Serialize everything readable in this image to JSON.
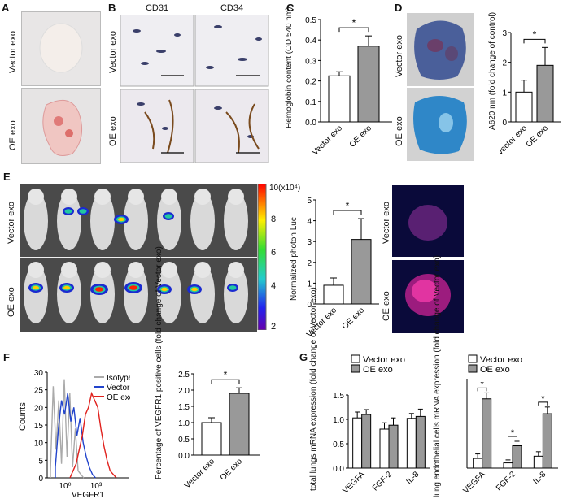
{
  "panels": {
    "A": {
      "letter": "A",
      "rows": [
        "Vector exo",
        "OE exo"
      ]
    },
    "B": {
      "letter": "B",
      "cols": [
        "CD31",
        "CD34"
      ],
      "rows": [
        "Vector exo",
        "OE exo"
      ]
    },
    "C": {
      "letter": "C",
      "sig": "*"
    },
    "D": {
      "letter": "D",
      "rows": [
        "Vector exo",
        "OE exo"
      ],
      "sig": "*"
    },
    "E": {
      "letter": "E",
      "rows": [
        "Vector exo",
        "OE exo"
      ],
      "scale_title": "10(x10⁴)",
      "scale_ticks": [
        "8",
        "6",
        "4",
        "2"
      ],
      "sig": "*"
    },
    "F": {
      "letter": "F",
      "legend": [
        "Isotype",
        "Vector exo",
        "OE exo"
      ],
      "xlabel": "VEGFR1",
      "ylabel": "Counts",
      "sig": "*"
    },
    "G": {
      "letter": "G",
      "legend": [
        "Vector exo",
        "OE exo"
      ],
      "sig": "*"
    }
  },
  "chart_data": [
    {
      "id": "C",
      "type": "bar",
      "categories": [
        "Vector exo",
        "OE exo"
      ],
      "values": [
        0.225,
        0.37
      ],
      "errors": [
        0.02,
        0.05
      ],
      "ylabel": "Hemoglobin content (OD 540 nm)",
      "ylim": [
        0,
        0.5
      ],
      "yticks": [
        "0.0",
        "0.1",
        "0.2",
        "0.3",
        "0.4",
        "0.5"
      ]
    },
    {
      "id": "D",
      "type": "bar",
      "categories": [
        "Vector exo",
        "OE exo"
      ],
      "values": [
        1.0,
        1.9
      ],
      "errors": [
        0.4,
        0.6
      ],
      "ylabel": "A620 nm (fold change of control)",
      "ylim": [
        0,
        3
      ],
      "yticks": [
        "0",
        "1",
        "2",
        "3"
      ]
    },
    {
      "id": "E",
      "type": "bar",
      "categories": [
        "Vector exo",
        "OE exo"
      ],
      "values": [
        0.9,
        3.1
      ],
      "errors": [
        0.35,
        1.0
      ],
      "ylabel": "Normalized photon Luc",
      "ylim": [
        0,
        5
      ],
      "yticks": [
        "0",
        "1",
        "2",
        "3",
        "4",
        "5"
      ]
    },
    {
      "id": "F-hist",
      "type": "histogram",
      "xlabel": "VEGFR1",
      "ylabel": "Counts",
      "ylim": [
        0,
        30
      ],
      "yticks": [
        "0",
        "5",
        "10",
        "15",
        "20",
        "25",
        "30"
      ],
      "xticks": [
        "10⁰",
        "10³"
      ],
      "series": [
        {
          "name": "Isotype",
          "color": "#aaaaaa"
        },
        {
          "name": "Vector exo",
          "color": "#2244cc"
        },
        {
          "name": "OE exo",
          "color": "#e0201c"
        }
      ]
    },
    {
      "id": "F-bar",
      "type": "bar",
      "categories": [
        "Vector exo",
        "OE exo"
      ],
      "values": [
        1.0,
        1.9
      ],
      "errors": [
        0.15,
        0.17
      ],
      "ylabel": "Percentage of VEGFR1 positive cells (fold change of Vector exo)",
      "ylim": [
        0,
        2.5
      ],
      "yticks": [
        "0.0",
        "0.5",
        "1.0",
        "1.5",
        "2.0",
        "2.5"
      ]
    },
    {
      "id": "G-left",
      "type": "bar",
      "categories": [
        "VEGFA",
        "FGF-2",
        "IL-8"
      ],
      "series": [
        {
          "name": "Vector exo",
          "values": [
            1.03,
            0.8,
            1.02
          ],
          "errors": [
            0.12,
            0.13,
            0.1
          ]
        },
        {
          "name": "OE exo",
          "values": [
            1.1,
            0.88,
            1.06
          ],
          "errors": [
            0.1,
            0.15,
            0.15
          ]
        }
      ],
      "ylabel": "total lungs mRNA expression (fold change of Vector exo)",
      "ylim": [
        0,
        1.5
      ],
      "yticks": [
        "0.0",
        "0.5",
        "1.0",
        "1.5"
      ]
    },
    {
      "id": "G-right",
      "type": "bar",
      "categories": [
        "VEGFA",
        "FGF-2",
        "IL-8"
      ],
      "series": [
        {
          "name": "Vector exo",
          "values": [
            1.3,
            0.7,
            1.6
          ],
          "errors": [
            0.6,
            0.4,
            0.6
          ]
        },
        {
          "name": "OE exo",
          "values": [
            9.3,
            3.0,
            7.3
          ],
          "errors": [
            0.8,
            0.6,
            0.9
          ]
        }
      ],
      "ylabel": "lung endothelial cells mRNA expression (fold change of Vector exo)",
      "ylim": [
        0,
        12
      ]
    }
  ]
}
